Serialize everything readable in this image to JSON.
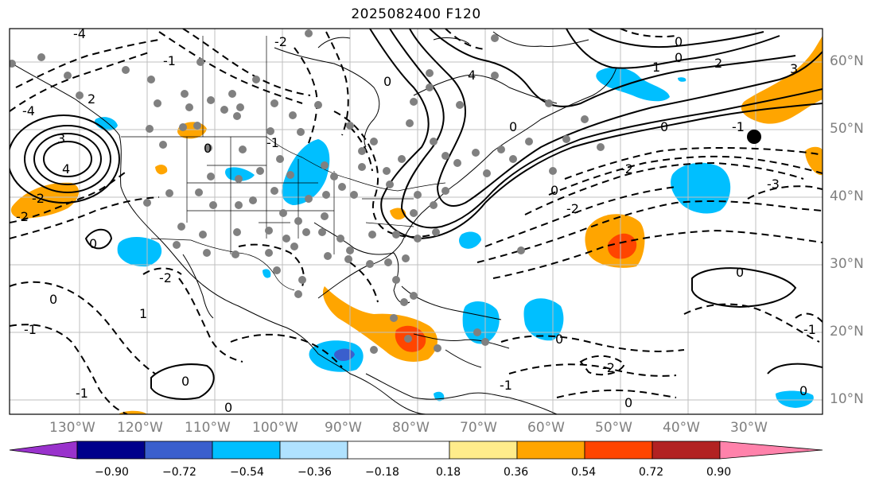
{
  "title": "2025082400 F120",
  "lon_labels": [
    "130°W",
    "120°W",
    "110°W",
    "100°W",
    "90°W",
    "80°W",
    "70°W",
    "60°W",
    "50°W",
    "40°W",
    "30°W"
  ],
  "lat_labels": [
    "60°N",
    "50°N",
    "40°N",
    "30°N",
    "20°N",
    "10°N"
  ],
  "colorbar": {
    "ticks": [
      "−0.90",
      "−0.72",
      "−0.54",
      "−0.36",
      "−0.18",
      "0.18",
      "0.36",
      "0.54",
      "0.72",
      "0.90"
    ],
    "colors": [
      "#9932cc",
      "#00008b",
      "#3a5fcd",
      "#00bfff",
      "#b0e2ff",
      "#ffffff",
      "#ffec8b",
      "#ffa500",
      "#ff4500",
      "#b22222",
      "#ff82ab"
    ]
  },
  "contour_labels": [
    "-4",
    "-3",
    "-2",
    "-1",
    "0",
    "1",
    "2",
    "3",
    "4"
  ],
  "map_colors": {
    "positive_fill": "#ffa500",
    "positive_core": "#ff4500",
    "negative_fill": "#00bfff",
    "negative_core": "#3a5fcd",
    "station_dots": "#808080",
    "contours": "#000000",
    "grid": "#bfbfbf"
  }
}
